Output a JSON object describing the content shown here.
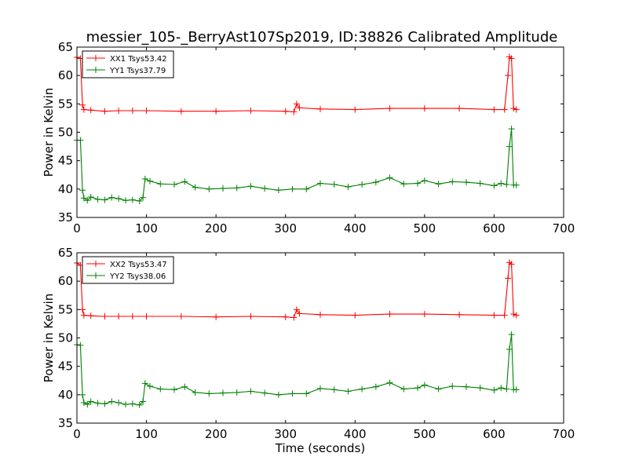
{
  "figure": {
    "title": "messier_105-_BerryAst107Sp2019, ID:38826 Calibrated Amplitude"
  },
  "chart_data": [
    {
      "type": "line",
      "title": "messier_105-_BerryAst107Sp2019, ID:38826 Calibrated Amplitude",
      "xlabel": "",
      "ylabel": "Power in Kelvin",
      "xlim": [
        0,
        700
      ],
      "ylim": [
        35,
        65
      ],
      "xticks": [
        0,
        100,
        200,
        300,
        400,
        500,
        600,
        700
      ],
      "yticks": [
        35,
        40,
        45,
        50,
        55,
        60,
        65
      ],
      "legend_position": "top-left",
      "grid": false,
      "series": [
        {
          "name": "XX1 Tsys53.42",
          "color": "#ff0000",
          "marker": "plus",
          "x": [
            0,
            5,
            8,
            10,
            20,
            40,
            60,
            80,
            100,
            150,
            200,
            250,
            300,
            312,
            316,
            320,
            350,
            400,
            450,
            500,
            550,
            600,
            615,
            620,
            622,
            625,
            628,
            632
          ],
          "y": [
            63.2,
            63.0,
            54.8,
            54.0,
            53.9,
            53.7,
            53.8,
            53.8,
            53.8,
            53.7,
            53.7,
            53.8,
            53.7,
            53.6,
            55.0,
            54.3,
            54.1,
            54.0,
            54.2,
            54.2,
            54.2,
            54.0,
            54.0,
            60.0,
            63.3,
            63.0,
            54.2,
            54.0
          ]
        },
        {
          "name": "YY1 Tsys37.79",
          "color": "#008000",
          "marker": "plus",
          "x": [
            0,
            5,
            8,
            10,
            15,
            20,
            30,
            40,
            50,
            60,
            70,
            80,
            90,
            95,
            98,
            105,
            120,
            140,
            155,
            170,
            190,
            210,
            230,
            250,
            270,
            290,
            310,
            330,
            350,
            370,
            390,
            410,
            430,
            450,
            470,
            490,
            500,
            520,
            540,
            560,
            580,
            600,
            610,
            618,
            622,
            625,
            628,
            632
          ],
          "y": [
            48.6,
            48.6,
            39.8,
            38.4,
            38.0,
            38.6,
            38.2,
            38.1,
            38.5,
            38.3,
            38.0,
            38.1,
            37.9,
            38.5,
            41.8,
            41.4,
            40.9,
            40.8,
            41.3,
            40.3,
            40.0,
            40.1,
            40.2,
            40.5,
            40.1,
            39.8,
            40.0,
            40.0,
            41.0,
            40.8,
            40.4,
            40.8,
            41.2,
            42.0,
            40.9,
            41.0,
            41.5,
            40.9,
            41.3,
            41.2,
            41.0,
            40.6,
            41.0,
            40.8,
            47.5,
            50.6,
            40.7,
            40.7
          ]
        }
      ]
    },
    {
      "type": "line",
      "title": "",
      "xlabel": "Time (seconds)",
      "ylabel": "Power in Kelvin",
      "xlim": [
        0,
        700
      ],
      "ylim": [
        35,
        65
      ],
      "xticks": [
        0,
        100,
        200,
        300,
        400,
        500,
        600,
        700
      ],
      "yticks": [
        35,
        40,
        45,
        50,
        55,
        60,
        65
      ],
      "legend_position": "top-left",
      "grid": false,
      "series": [
        {
          "name": "XX2 Tsys53.47",
          "color": "#ff0000",
          "marker": "plus",
          "x": [
            0,
            5,
            8,
            10,
            20,
            40,
            60,
            80,
            100,
            150,
            200,
            250,
            300,
            312,
            316,
            320,
            350,
            400,
            450,
            500,
            550,
            600,
            615,
            620,
            622,
            625,
            628,
            632
          ],
          "y": [
            63.2,
            62.8,
            55.0,
            54.0,
            53.9,
            53.8,
            53.8,
            53.8,
            53.8,
            53.8,
            53.7,
            53.8,
            53.7,
            53.6,
            55.0,
            54.3,
            54.1,
            54.0,
            54.2,
            54.2,
            54.1,
            54.0,
            54.0,
            60.5,
            63.3,
            63.0,
            54.2,
            54.0
          ]
        },
        {
          "name": "YY2 Tsys38.06",
          "color": "#008000",
          "marker": "plus",
          "x": [
            0,
            5,
            8,
            10,
            15,
            20,
            30,
            40,
            50,
            60,
            70,
            80,
            90,
            95,
            98,
            105,
            120,
            140,
            155,
            170,
            190,
            210,
            230,
            250,
            270,
            290,
            310,
            330,
            350,
            370,
            390,
            410,
            430,
            450,
            470,
            490,
            500,
            520,
            540,
            560,
            580,
            600,
            610,
            618,
            622,
            625,
            628,
            632
          ],
          "y": [
            48.8,
            48.7,
            40.0,
            38.6,
            38.3,
            38.8,
            38.5,
            38.4,
            38.8,
            38.6,
            38.3,
            38.4,
            38.2,
            38.8,
            42.0,
            41.5,
            41.0,
            40.9,
            41.4,
            40.4,
            40.2,
            40.3,
            40.4,
            40.6,
            40.3,
            40.0,
            40.2,
            40.2,
            41.1,
            40.9,
            40.6,
            41.0,
            41.4,
            42.1,
            41.0,
            41.2,
            41.7,
            41.0,
            41.5,
            41.4,
            41.2,
            40.8,
            41.2,
            41.0,
            48.0,
            50.6,
            40.9,
            40.9
          ]
        }
      ]
    }
  ]
}
